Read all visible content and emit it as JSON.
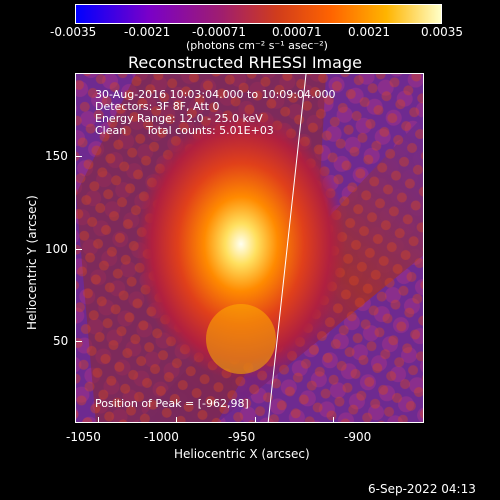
{
  "colorbar": {
    "ticks": [
      "-0.0035",
      "-0.0021",
      "-0.00071",
      "0.00071",
      "0.0021",
      "0.0035"
    ],
    "units": "(photons cm⁻² s⁻¹ asec⁻²)"
  },
  "title": "Reconstructed RHESSI Image",
  "info": {
    "time_range": "30-Aug-2016 10:03:04.000 to 10:09:04.000",
    "detectors": "Detectors: 3F 8F, Att 0",
    "energy": "Energy Range: 12.0 - 25.0 keV",
    "clean": "Clean",
    "total_counts": "Total counts: 5.01E+03",
    "peak": "Position of Peak = [-962,98]"
  },
  "axes": {
    "x_label": "Heliocentric X (arcsec)",
    "y_label": "Heliocentric Y (arcsec)",
    "x_ticks": [
      "-1050",
      "-1000",
      "-950",
      "-900"
    ],
    "y_ticks": [
      "150",
      "100",
      "50"
    ]
  },
  "footer": {
    "timestamp": "6-Sep-2022 04:13"
  },
  "colors": {
    "background": "#000000",
    "accent": "#ffffff"
  }
}
